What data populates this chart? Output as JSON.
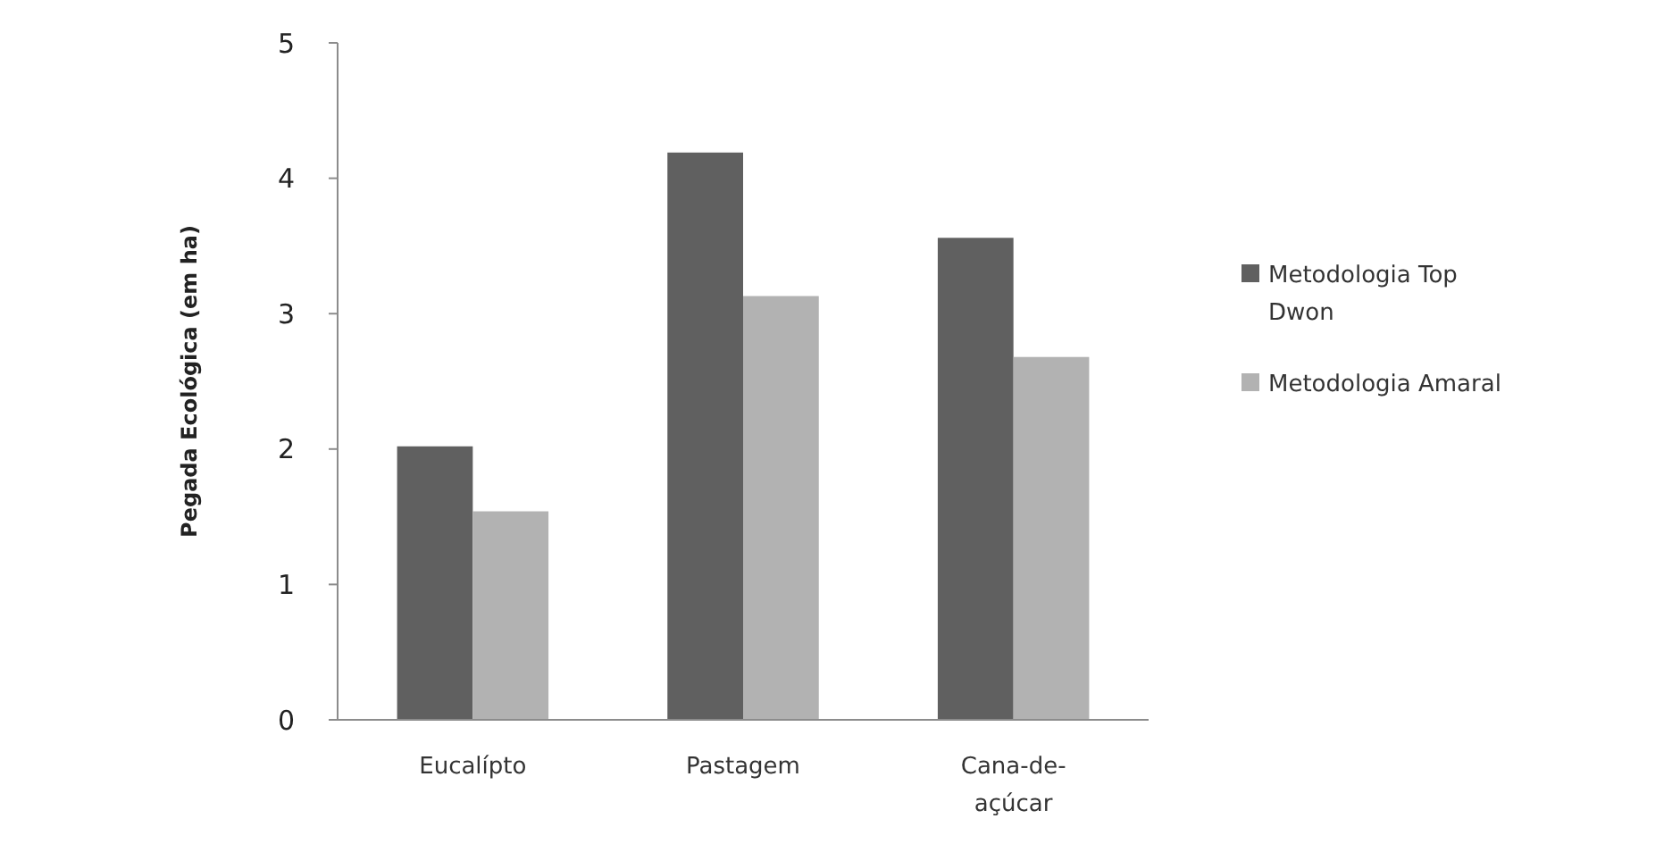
{
  "chart_data": {
    "type": "bar",
    "ylabel": "Pegada Ecológica  (em ha)",
    "categories": [
      "Eucalípto",
      "Pastagem",
      "Cana-de-açúcar"
    ],
    "series": [
      {
        "name": "Metodologia Top Dwon",
        "color": "#606060",
        "values": [
          2.02,
          4.19,
          3.56
        ]
      },
      {
        "name": "Metodologia Amaral",
        "color": "#b2b2b2",
        "values": [
          1.54,
          3.13,
          2.68
        ]
      }
    ],
    "ylim": [
      0,
      5
    ],
    "yticks": [
      0,
      1,
      2,
      3,
      4,
      5
    ],
    "grid": false,
    "legend": "right"
  }
}
